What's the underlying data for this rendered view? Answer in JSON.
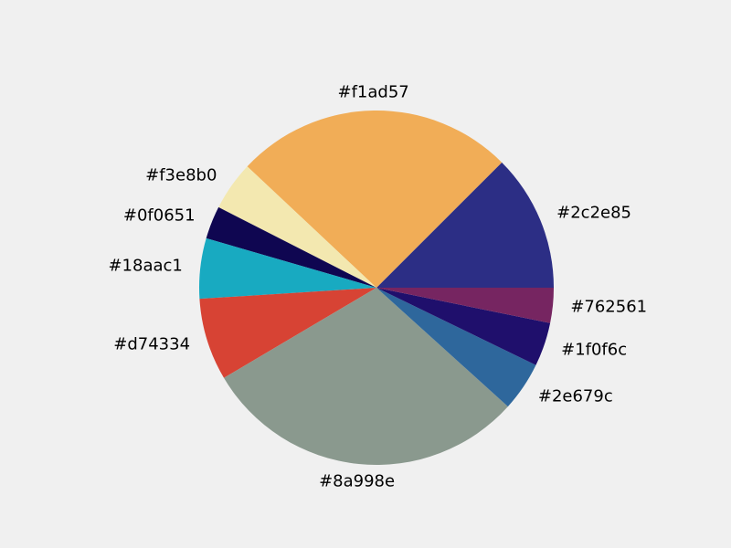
{
  "chart_data": {
    "type": "pie",
    "title": "",
    "legend": "none",
    "start_angle_deg": 0,
    "direction": "counterclockwise",
    "slices": [
      {
        "label": "#2c2e85",
        "value": 12.5,
        "color": "#2c2e85"
      },
      {
        "label": "#f1ad57",
        "value": 25.5,
        "color": "#f1ad57"
      },
      {
        "label": "#f3e8b0",
        "value": 4.5,
        "color": "#f3e8b0"
      },
      {
        "label": "#0f0651",
        "value": 3.0,
        "color": "#0f0651"
      },
      {
        "label": "#18aac1",
        "value": 5.5,
        "color": "#18aac1"
      },
      {
        "label": "#d74334",
        "value": 7.5,
        "color": "#d74334"
      },
      {
        "label": "#8a998e",
        "value": 29.8,
        "color": "#8a998e"
      },
      {
        "label": "#2e679c",
        "value": 4.5,
        "color": "#2e679c"
      },
      {
        "label": "#1f0f6c",
        "value": 4.0,
        "color": "#1f0f6c"
      },
      {
        "label": "#762561",
        "value": 3.2,
        "color": "#762561"
      }
    ]
  }
}
